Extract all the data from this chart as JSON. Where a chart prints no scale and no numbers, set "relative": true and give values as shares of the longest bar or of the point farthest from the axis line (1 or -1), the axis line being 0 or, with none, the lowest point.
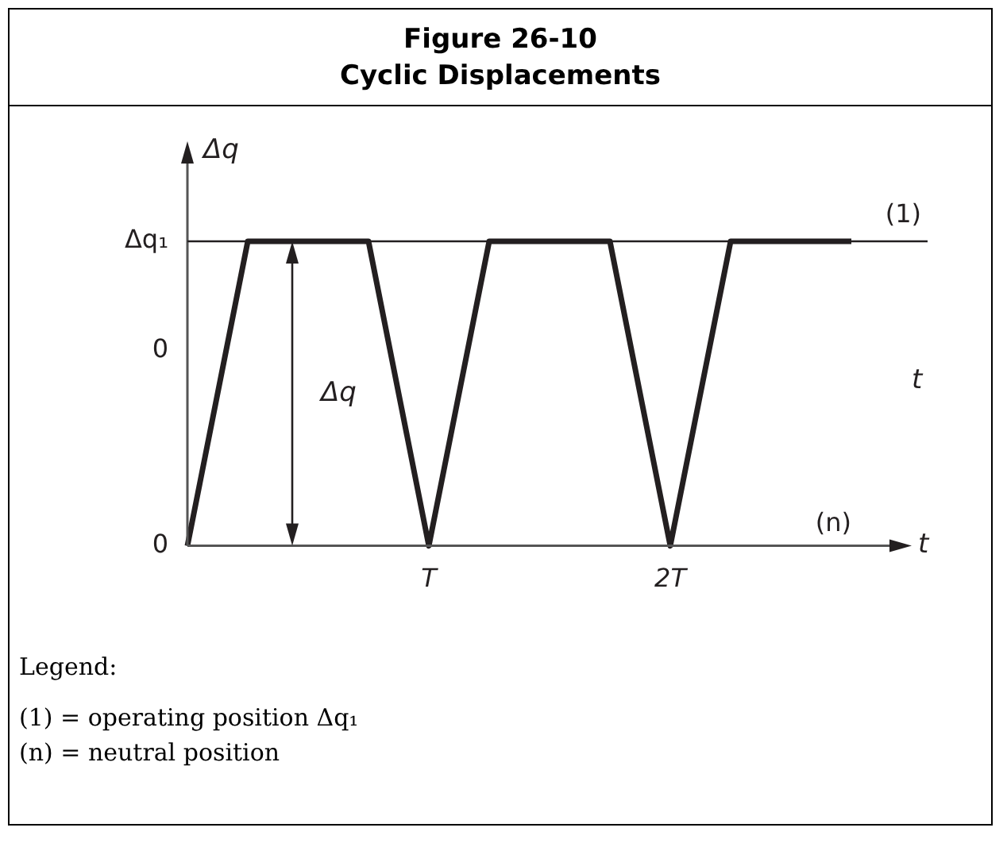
{
  "chart_data": {
    "type": "line",
    "title": "Figure 26-10",
    "subtitle": "Cyclic Displacements",
    "xlabel": "t",
    "ylabel": "Δq",
    "relative": true,
    "categories": [
      null,
      null,
      null,
      null,
      "T",
      null,
      null,
      null,
      "2T",
      null,
      null,
      null
    ],
    "series": [
      {
        "color": "#231f20",
        "values": [
          0,
          1,
          1,
          1,
          0,
          1,
          1,
          1,
          0,
          1,
          1,
          1
        ]
      }
    ],
    "ref_lines": [
      {
        "axis": "y",
        "value": 1,
        "label": "(1)",
        "color": "#231f20"
      }
    ],
    "annotations": [
      "Δq₁",
      "0",
      "0",
      "Δq",
      "t",
      "(n)",
      "Legend:",
      "(1) = operating position Δq₁",
      "(n) = neutral position"
    ],
    "grid": false,
    "legend": false,
    "marker": "none",
    "line_style": "solid"
  }
}
